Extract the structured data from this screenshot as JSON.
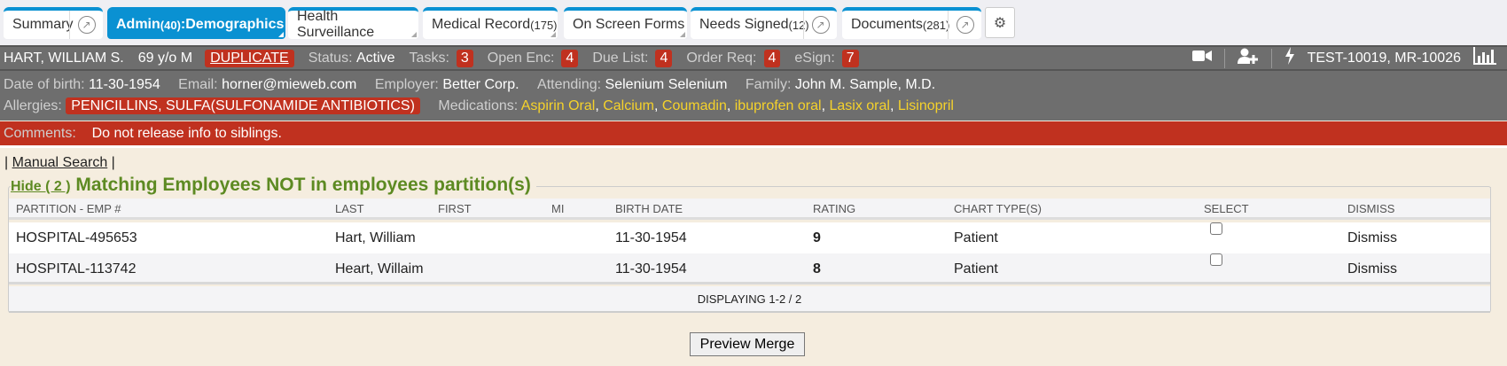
{
  "tabs": [
    {
      "label": "Summary",
      "ext": true
    },
    {
      "label": "Admin ",
      "count": "(40)",
      "suffix": ":Demographics",
      "active": true
    },
    {
      "label": "Health Surveillance"
    },
    {
      "label": "Medical Record ",
      "count": "(175)"
    },
    {
      "label": "On Screen Forms"
    },
    {
      "label": "Needs Signed ",
      "count": "(12)",
      "ext": true
    },
    {
      "label": "Documents ",
      "count": "(281)",
      "ext": true
    }
  ],
  "header": {
    "name": "HART, WILLIAM S.",
    "age": "69 y/o M",
    "duplicate": "DUPLICATE",
    "status_label": "Status:",
    "status": "Active",
    "tasks_label": "Tasks:",
    "tasks": "3",
    "open_enc_label": "Open Enc:",
    "open_enc": "4",
    "due_list_label": "Due List:",
    "due_list": "4",
    "order_req_label": "Order Req:",
    "order_req": "4",
    "esign_label": "eSign:",
    "esign": "7",
    "ids": "TEST-10019, MR-10026"
  },
  "info": {
    "dob_label": "Date of birth:",
    "dob": "11-30-1954",
    "email_label": "Email:",
    "email": "horner@mieweb.com",
    "employer_label": "Employer:",
    "employer": "Better Corp.",
    "attending_label": "Attending:",
    "attending": "Selenium Selenium",
    "family_label": "Family:",
    "family": "John M. Sample, M.D.",
    "allergies_label": "Allergies:",
    "allergies": "PENICILLINS, SULFA(SULFONAMIDE ANTIBIOTICS)",
    "medications_label": "Medications:",
    "medications": [
      "Aspirin Oral",
      "Calcium",
      "Coumadin",
      "ibuprofen oral",
      "Lasix oral",
      "Lisinopril"
    ]
  },
  "comments": {
    "label": "Comments:",
    "text": "Do not release info to siblings."
  },
  "manual_search": "Manual Search",
  "section": {
    "hide": "Hide ( 2 )",
    "title": "Matching Employees NOT in employees partition(s)"
  },
  "table": {
    "columns": [
      "PARTITION - EMP #",
      "LAST",
      "FIRST",
      "MI",
      "BIRTH DATE",
      "RATING",
      "CHART TYPE(S)",
      "SELECT",
      "DISMISS"
    ],
    "rows": [
      {
        "partition": "HOSPITAL-495653",
        "last": "Hart, William",
        "first": "",
        "mi": "",
        "birth": "11-30-1954",
        "rating": "9",
        "chart": "Patient",
        "selected": false,
        "dismiss": "Dismiss"
      },
      {
        "partition": "HOSPITAL-113742",
        "last": "Heart, Willaim",
        "first": "",
        "mi": "",
        "birth": "11-30-1954",
        "rating": "8",
        "chart": "Patient",
        "selected": false,
        "dismiss": "Dismiss"
      }
    ],
    "footer": "DISPLAYING 1-2 / 2"
  },
  "preview_merge": "Preview Merge",
  "colors": {
    "tab_blue": "#0a91d2",
    "alert_red": "#c0311f",
    "section_green": "#5d8a22",
    "med_yellow": "#f5d22b"
  }
}
